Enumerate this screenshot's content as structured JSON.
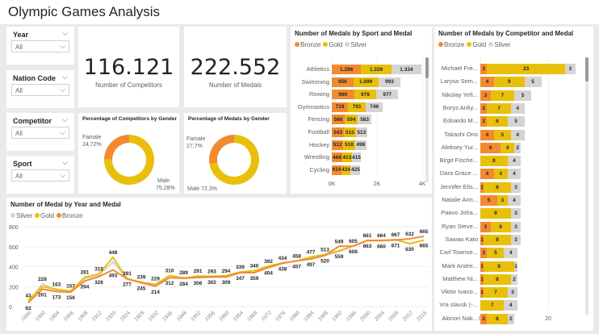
{
  "title": "Olympic Games Analysis",
  "colors": {
    "bronze": "#f28a30",
    "gold": "#e8c00c",
    "silver": "#d6d3d3"
  },
  "slicers": [
    {
      "label": "Year",
      "value": "All"
    },
    {
      "label": "Nation Code",
      "value": "All"
    },
    {
      "label": "Competitor",
      "value": "All"
    },
    {
      "label": "Sport",
      "value": "All"
    }
  ],
  "kpis": [
    {
      "value": "116.121",
      "label": "Number of Competitors"
    },
    {
      "value": "222.552",
      "label": "Number of Medals"
    }
  ],
  "chart_data": [
    {
      "type": "pie",
      "title": "Percentage of Competitors by Gender",
      "donut": true,
      "slices": [
        {
          "label": "Famale",
          "value": 24.72,
          "text": "24,72%",
          "color": "#f28a30"
        },
        {
          "label": "Male",
          "value": 75.28,
          "text": "75,28%",
          "color": "#e8c00c"
        }
      ]
    },
    {
      "type": "pie",
      "title": "Percentage of Medals by Gender",
      "donut": true,
      "slices": [
        {
          "label": "Famale",
          "value": 27.7,
          "text": "27,7%",
          "color": "#f28a30"
        },
        {
          "label": "Male",
          "value": 72.3,
          "text": "72,3%",
          "color": "#e8c00c"
        }
      ]
    },
    {
      "type": "bar",
      "orientation": "horizontal",
      "stacked": true,
      "title": "Number of Medals by Sport and Medal",
      "legend": [
        "Bronze",
        "Gold",
        "Silver"
      ],
      "legend_position": "top-left",
      "categories": [
        "Athletics",
        "Swimming",
        "Rowing",
        "Gymnastics",
        "Fencing",
        "Football",
        "Hockey",
        "Wrestling",
        "Cycling"
      ],
      "series": [
        {
          "name": "Bronze",
          "values": [
            1296,
            956,
            990,
            719,
            566,
            543,
            512,
            468,
            414
          ],
          "labels": [
            "1.296",
            "956",
            "990",
            "719",
            "566",
            "543",
            "512",
            "468",
            "414"
          ]
        },
        {
          "name": "Gold",
          "values": [
            1339,
            1099,
            978,
            791,
            594,
            515,
            518,
            413,
            424
          ],
          "labels": [
            "1.339",
            "1.099",
            "978",
            "791",
            "594",
            "515",
            "518",
            "413",
            "424"
          ]
        },
        {
          "name": "Silver",
          "values": [
            1334,
            993,
            977,
            746,
            583,
            513,
            498,
            415,
            425
          ],
          "labels": [
            "1.334",
            "993",
            "977",
            "746",
            "583",
            "513",
            "498",
            "415",
            "425"
          ]
        }
      ],
      "xlim": [
        0,
        4000
      ],
      "xticks": [
        "0K",
        "2K",
        "4K"
      ]
    },
    {
      "type": "bar",
      "orientation": "horizontal",
      "stacked": true,
      "title": "Number of Medals by Competitor and Medal",
      "legend": [
        "Bronze",
        "Gold",
        "Silver"
      ],
      "legend_position": "top-left",
      "categories": [
        "Michael Fre...",
        "Larysa Sem...",
        "Nikolay Yefi...",
        "Borys Anfiy...",
        "Edoardo M...",
        "Takashi Ono",
        "Aleksey Yur...",
        "Birgit Fische...",
        "Dara Grace ...",
        "Jennifer Elis...",
        "Natalie Ann...",
        "Paavo Joha...",
        "Ryan Steve...",
        "Sawao Kato",
        "Carl Townse...",
        "Mark Andre...",
        "Matthew Ni...",
        "Viktor Ivano...",
        "Vra slavsk (-...",
        "Akinori Nak..."
      ],
      "series": [
        {
          "name": "Bronze",
          "values": [
            2,
            4,
            3,
            2,
            2,
            4,
            6,
            0,
            4,
            1,
            5,
            0,
            3,
            1,
            2,
            1,
            1,
            1,
            0,
            2
          ]
        },
        {
          "name": "Gold",
          "values": [
            23,
            9,
            7,
            7,
            6,
            5,
            4,
            8,
            4,
            8,
            3,
            9,
            6,
            8,
            5,
            9,
            8,
            7,
            7,
            6
          ]
        },
        {
          "name": "Silver",
          "values": [
            3,
            5,
            5,
            4,
            5,
            4,
            2,
            4,
            4,
            3,
            4,
            3,
            3,
            3,
            4,
            1,
            2,
            3,
            4,
            2
          ]
        }
      ],
      "xlim": [
        0,
        30
      ],
      "xticks": [
        "0",
        "20"
      ]
    },
    {
      "type": "line",
      "title": "Number of Medal by Year and Medal",
      "legend": [
        "Silver",
        "Gold",
        "Bronze"
      ],
      "legend_position": "top-left",
      "x": [
        "1896",
        "1900",
        "1904",
        "1906",
        "1908",
        "1912",
        "1920",
        "1924",
        "1928",
        "1932",
        "1936",
        "1948",
        "1952",
        "1956",
        "1960",
        "1964",
        "1968",
        "1972",
        "1976",
        "1980",
        "1984",
        "1988",
        "1992",
        "1996",
        "2000",
        "2004",
        "2008",
        "2012",
        "2016"
      ],
      "series": [
        {
          "name": "Silver",
          "values": [
            43,
            228,
            163,
            157,
            281,
            315,
            448,
            281,
            239,
            229,
            310,
            289,
            291,
            293,
            294,
            339,
            340,
            392,
            434,
            458,
            477,
            513,
            549,
            605,
            661,
            664,
            667,
            632,
            665
          ]
        },
        {
          "name": "Gold",
          "values": [
            62,
            201,
            173,
            156,
            294,
            326,
            493,
            277,
            245,
            214,
            312,
            284,
            306,
            302,
            309,
            347,
            359,
            404,
            438,
            457,
            497,
            520,
            559,
            608,
            663,
            660,
            671,
            630,
            665
          ]
        },
        {
          "name": "Bronze",
          "values": [
            40,
            175,
            150,
            145,
            256,
            300,
            367,
            277,
            239,
            204,
            289,
            284,
            291,
            300,
            298,
            339,
            340,
            392,
            434,
            458,
            477,
            513,
            604,
            605,
            661,
            664,
            667,
            679,
            703
          ]
        }
      ],
      "ylim": [
        0,
        800
      ],
      "yticks": [
        "0",
        "200",
        "400",
        "600",
        "800"
      ],
      "grid": true
    }
  ]
}
